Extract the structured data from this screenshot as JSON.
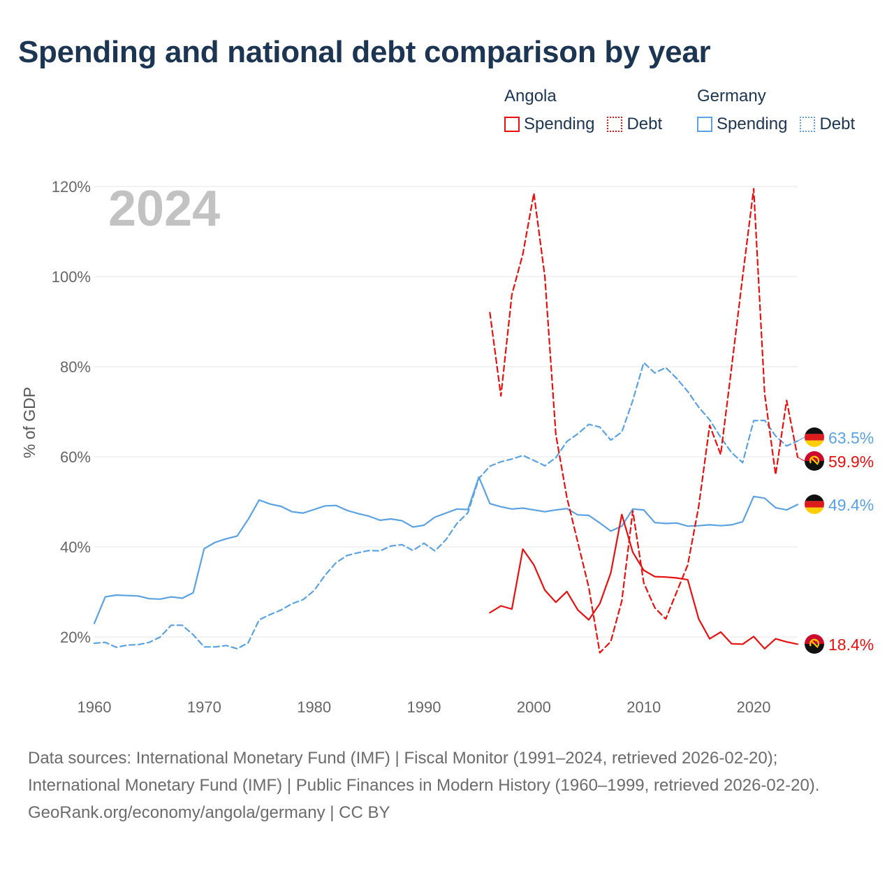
{
  "title": "Spending and national debt comparison by year",
  "legend": {
    "groups": [
      {
        "name": "Angola",
        "items": [
          {
            "label": "Spending",
            "color": "#e8100f",
            "style": "solid"
          },
          {
            "label": "Debt",
            "color": "#e8100f",
            "style": "dotted"
          }
        ]
      },
      {
        "name": "Germany",
        "items": [
          {
            "label": "Spending",
            "color": "#5aa2e3",
            "style": "solid"
          },
          {
            "label": "Debt",
            "color": "#5aa2e3",
            "style": "dotted"
          }
        ]
      }
    ]
  },
  "footer": {
    "sources": "Data sources: International Monetary Fund (IMF) | Fiscal Monitor (1991–2024, retrieved 2026-02-20); International Monetary Fund (IMF) | Public Finances in Modern History (1960–1999, retrieved 2026-02-20).",
    "credit": "GeoRank.org/economy/angola/germany | CC BY"
  },
  "chart_data": {
    "type": "line",
    "ylabel": "% of GDP",
    "xlabel": "",
    "year_label": "2024",
    "xlim": [
      1960,
      2024
    ],
    "ylim": [
      10,
      122
    ],
    "x_ticks": [
      1960,
      1970,
      1980,
      1990,
      2000,
      2010,
      2020
    ],
    "x_tick_labels": [
      "1960",
      "1970",
      "1980",
      "1990",
      "2000",
      "2010",
      "2020"
    ],
    "y_ticks": [
      20,
      40,
      60,
      80,
      100,
      120
    ],
    "y_tick_labels": [
      "20%",
      "40%",
      "60%",
      "80%",
      "100%",
      "120%"
    ],
    "grid": true,
    "series": [
      {
        "name": "Germany Debt",
        "country": "Germany",
        "measure": "Debt",
        "color": "#5aa2e3",
        "dashed": true,
        "end_label": "63.5%",
        "flag": "germany",
        "x": [
          1960,
          1961,
          1962,
          1963,
          1964,
          1965,
          1966,
          1967,
          1968,
          1969,
          1970,
          1971,
          1972,
          1973,
          1974,
          1975,
          1976,
          1977,
          1978,
          1979,
          1980,
          1981,
          1982,
          1983,
          1984,
          1985,
          1986,
          1987,
          1988,
          1989,
          1990,
          1991,
          1992,
          1993,
          1994,
          1995,
          1996,
          1997,
          1998,
          1999,
          2000,
          2001,
          2002,
          2003,
          2004,
          2005,
          2006,
          2007,
          2008,
          2009,
          2010,
          2011,
          2012,
          2013,
          2014,
          2015,
          2016,
          2017,
          2018,
          2019,
          2020,
          2021,
          2022,
          2023,
          2024
        ],
        "values": [
          18.6,
          18.8,
          17.7,
          18.2,
          18.3,
          18.8,
          20.0,
          22.6,
          22.6,
          20.5,
          17.8,
          17.8,
          18.1,
          17.4,
          18.7,
          23.8,
          25.0,
          26.0,
          27.4,
          28.3,
          30.3,
          33.7,
          36.5,
          38.1,
          38.7,
          39.2,
          39.1,
          40.2,
          40.5,
          39.2,
          40.8,
          39.1,
          41.6,
          45.2,
          47.6,
          55.2,
          57.9,
          58.9,
          59.5,
          60.3,
          59.2,
          58.0,
          59.8,
          63.4,
          65.1,
          67.2,
          66.6,
          63.7,
          65.5,
          72.5,
          80.9,
          78.6,
          79.8,
          77.4,
          74.5,
          71.0,
          68.2,
          64.3,
          60.9,
          58.7,
          68.0,
          68.1,
          64.6,
          62.4,
          63.5
        ]
      },
      {
        "name": "Germany Spending",
        "country": "Germany",
        "measure": "Spending",
        "color": "#5aa2e3",
        "dashed": false,
        "end_label": "49.4%",
        "flag": "germany",
        "x": [
          1960,
          1961,
          1962,
          1963,
          1964,
          1965,
          1966,
          1967,
          1968,
          1969,
          1970,
          1971,
          1972,
          1973,
          1974,
          1975,
          1976,
          1977,
          1978,
          1979,
          1980,
          1981,
          1982,
          1983,
          1984,
          1985,
          1986,
          1987,
          1988,
          1989,
          1990,
          1991,
          1992,
          1993,
          1994,
          1995,
          1996,
          1997,
          1998,
          1999,
          2000,
          2001,
          2002,
          2003,
          2004,
          2005,
          2006,
          2007,
          2008,
          2009,
          2010,
          2011,
          2012,
          2013,
          2014,
          2015,
          2016,
          2017,
          2018,
          2019,
          2020,
          2021,
          2022,
          2023,
          2024
        ],
        "values": [
          23.0,
          28.9,
          29.3,
          29.2,
          29.1,
          28.5,
          28.4,
          28.9,
          28.6,
          29.8,
          39.6,
          41.0,
          41.8,
          42.4,
          46.1,
          50.4,
          49.5,
          49.0,
          47.8,
          47.5,
          48.3,
          49.1,
          49.2,
          48.1,
          47.4,
          46.8,
          45.9,
          46.2,
          45.8,
          44.4,
          44.8,
          46.6,
          47.5,
          48.4,
          48.3,
          55.5,
          49.6,
          48.9,
          48.4,
          48.6,
          48.2,
          47.8,
          48.2,
          48.5,
          47.1,
          47.0,
          45.3,
          43.5,
          44.6,
          48.4,
          48.2,
          45.4,
          45.2,
          45.3,
          44.6,
          44.7,
          44.9,
          44.7,
          44.9,
          45.6,
          51.2,
          50.8,
          48.7,
          48.2,
          49.4
        ]
      },
      {
        "name": "Angola Debt",
        "country": "Angola",
        "measure": "Debt",
        "color": "#e8100f",
        "dashed": true,
        "end_label": "59.9%",
        "flag": "angola",
        "x": [
          1996,
          1997,
          1998,
          1999,
          2000,
          2001,
          2002,
          2003,
          2004,
          2005,
          2006,
          2007,
          2008,
          2009,
          2010,
          2011,
          2012,
          2013,
          2014,
          2015,
          2016,
          2017,
          2018,
          2019,
          2020,
          2021,
          2022,
          2023,
          2024
        ],
        "values": [
          92.0,
          73.5,
          96.0,
          105.0,
          118.5,
          100.0,
          65.0,
          51.0,
          41.0,
          31.0,
          16.5,
          19.0,
          28.0,
          48.0,
          32.0,
          26.5,
          24.0,
          30.0,
          36.0,
          49.0,
          67.0,
          60.5,
          80.0,
          100.0,
          119.5,
          74.0,
          56.0,
          72.5,
          59.9
        ]
      },
      {
        "name": "Angola Spending",
        "country": "Angola",
        "measure": "Spending",
        "color": "#e8100f",
        "dashed": false,
        "end_label": "18.4%",
        "flag": "angola",
        "x": [
          1996,
          1997,
          1998,
          1999,
          2000,
          2001,
          2002,
          2003,
          2004,
          2005,
          2006,
          2007,
          2008,
          2009,
          2010,
          2011,
          2012,
          2013,
          2014,
          2015,
          2016,
          2017,
          2018,
          2019,
          2020,
          2021,
          2022,
          2023,
          2024
        ],
        "values": [
          25.4,
          26.9,
          26.2,
          39.5,
          36.0,
          30.4,
          27.7,
          30.1,
          26.0,
          23.8,
          27.4,
          34.2,
          47.2,
          38.8,
          34.8,
          33.4,
          33.3,
          33.1,
          32.7,
          24.0,
          19.6,
          21.1,
          18.5,
          18.4,
          20.1,
          17.4,
          19.6,
          18.9,
          18.4
        ]
      }
    ]
  }
}
